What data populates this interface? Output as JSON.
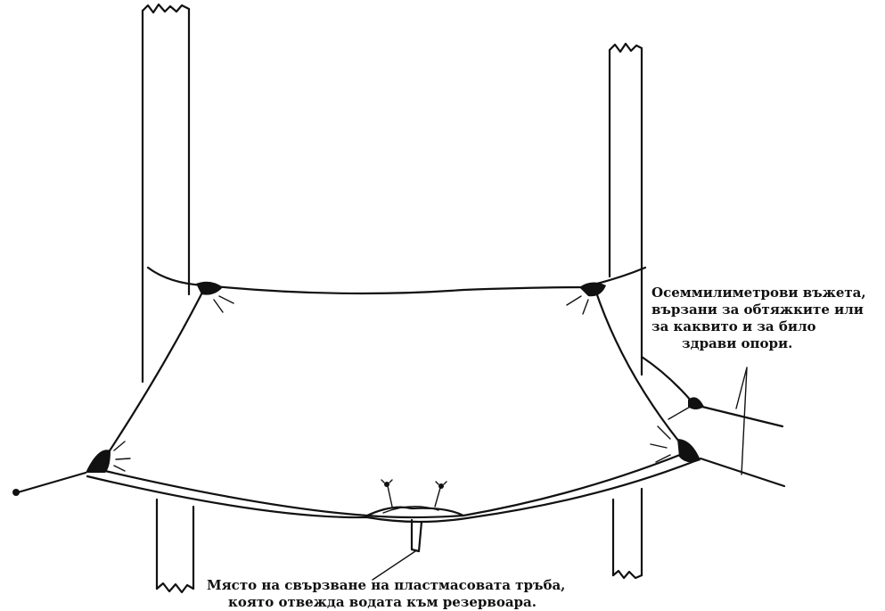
{
  "annotations": {
    "ropes": {
      "line1": "Осеммилиметрови въжета,",
      "line2": "вързани за обтяжките или",
      "line3": "за  каквито и за било",
      "line4": "здрави опори."
    },
    "pipe": {
      "line1": "Място на свързване на пластмасовата тръба,",
      "line2": "която отвежда водата към резервоара."
    }
  },
  "colors": {
    "ink": "#111111",
    "background": "#ffffff"
  }
}
